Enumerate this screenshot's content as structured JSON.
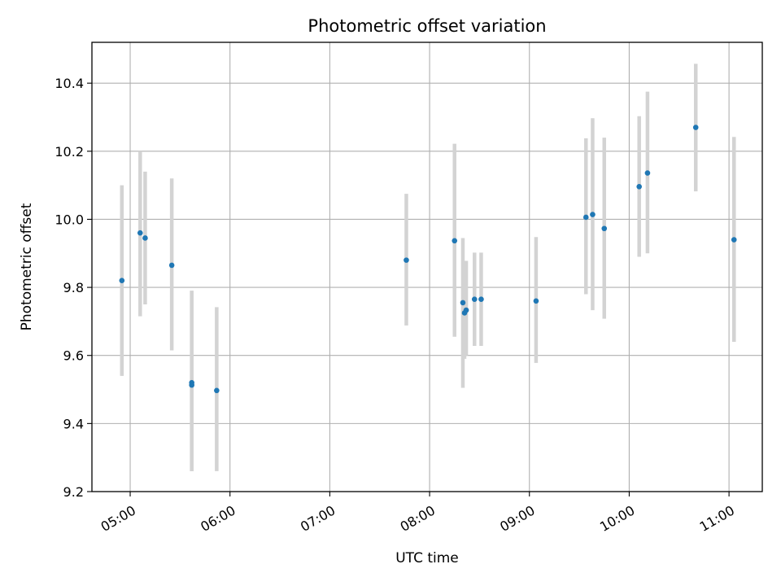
{
  "chart_data": {
    "type": "scatter",
    "title": "Photometric offset variation",
    "xlabel": "UTC time",
    "ylabel": "Photometric offset",
    "xlim": [
      "04:37",
      "11:20"
    ],
    "ylim": [
      9.2,
      10.52
    ],
    "x_ticks": [
      "05:00",
      "06:00",
      "07:00",
      "08:00",
      "09:00",
      "10:00",
      "11:00"
    ],
    "y_ticks": [
      "9.2",
      "9.4",
      "9.6",
      "9.8",
      "10.0",
      "10.2",
      "10.4"
    ],
    "grid": true,
    "legend": "none",
    "colors": {
      "marker": "#1f77b4",
      "errorbar": "#d3d3d3",
      "grid": "#b0b0b0"
    },
    "points": [
      {
        "x": "04:55",
        "y": 9.82,
        "ylow": 9.54,
        "yhigh": 10.1
      },
      {
        "x": "05:06",
        "y": 9.96,
        "ylow": 9.715,
        "yhigh": 10.2
      },
      {
        "x": "05:09",
        "y": 9.945,
        "ylow": 9.75,
        "yhigh": 10.14
      },
      {
        "x": "05:25",
        "y": 9.865,
        "ylow": 9.615,
        "yhigh": 10.12
      },
      {
        "x": "05:37",
        "y": 9.52,
        "ylow": 9.26,
        "yhigh": 9.79
      },
      {
        "x": "05:37",
        "y": 9.513,
        "ylow": 9.26,
        "yhigh": 9.79
      },
      {
        "x": "05:52",
        "y": 9.497,
        "ylow": 9.26,
        "yhigh": 9.742
      },
      {
        "x": "07:46",
        "y": 9.88,
        "ylow": 9.688,
        "yhigh": 10.075
      },
      {
        "x": "08:15",
        "y": 9.937,
        "ylow": 9.655,
        "yhigh": 10.222
      },
      {
        "x": "08:20",
        "y": 9.755,
        "ylow": 9.505,
        "yhigh": 9.945
      },
      {
        "x": "08:21",
        "y": 9.725,
        "ylow": 9.59,
        "yhigh": 9.85
      },
      {
        "x": "08:22",
        "y": 9.733,
        "ylow": 9.6,
        "yhigh": 9.878
      },
      {
        "x": "08:27",
        "y": 9.765,
        "ylow": 9.628,
        "yhigh": 9.902
      },
      {
        "x": "08:31",
        "y": 9.765,
        "ylow": 9.628,
        "yhigh": 9.902
      },
      {
        "x": "09:04",
        "y": 9.76,
        "ylow": 9.578,
        "yhigh": 9.948
      },
      {
        "x": "09:34",
        "y": 10.006,
        "ylow": 9.78,
        "yhigh": 10.238
      },
      {
        "x": "09:38",
        "y": 10.014,
        "ylow": 9.733,
        "yhigh": 10.297
      },
      {
        "x": "09:45",
        "y": 9.973,
        "ylow": 9.708,
        "yhigh": 10.24
      },
      {
        "x": "10:06",
        "y": 10.096,
        "ylow": 9.89,
        "yhigh": 10.303
      },
      {
        "x": "10:11",
        "y": 10.136,
        "ylow": 9.9,
        "yhigh": 10.375
      },
      {
        "x": "10:40",
        "y": 10.27,
        "ylow": 10.082,
        "yhigh": 10.457
      },
      {
        "x": "11:03",
        "y": 9.94,
        "ylow": 9.64,
        "yhigh": 10.242
      }
    ]
  }
}
